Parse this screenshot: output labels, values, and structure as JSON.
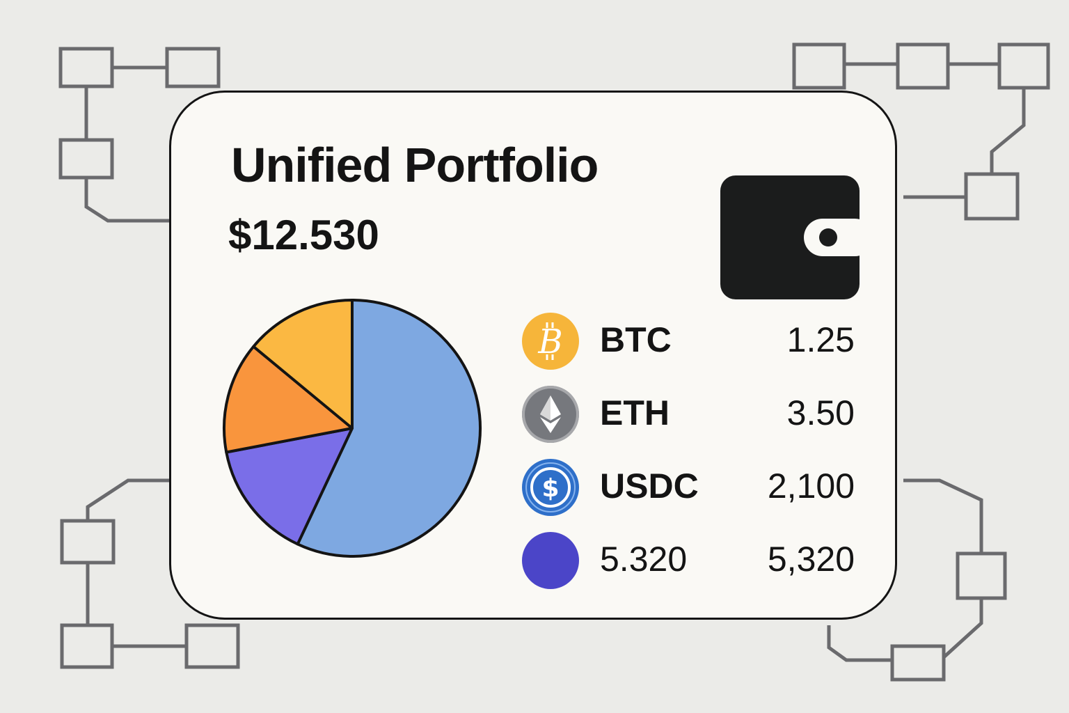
{
  "portfolio": {
    "title": "Unified Portfolio",
    "total_value": "$12.530"
  },
  "wallet_icon": "wallet-icon",
  "holdings": [
    {
      "symbol": "BTC",
      "amount": "1.25",
      "icon": "bitcoin-icon",
      "color": "#f6b53a"
    },
    {
      "symbol": "ETH",
      "amount": "3.50",
      "icon": "ethereum-icon",
      "color": "#76787d"
    },
    {
      "symbol": "USDC",
      "amount": "2,100",
      "icon": "usdc-icon",
      "color": "#2e6fc9"
    },
    {
      "symbol": "5.320",
      "amount": "5,320",
      "icon": "coin-icon",
      "color": "#4b45c8"
    }
  ],
  "chart_data": {
    "type": "pie",
    "title": "",
    "values": [
      57,
      15,
      14,
      14
    ],
    "colors": [
      "#7ea8e1",
      "#7a6ee8",
      "#f9953d",
      "#fbb842"
    ]
  },
  "colors": {
    "background": "#ebebe8",
    "card": "#faf9f5",
    "outline": "#141414",
    "network": "#6a6a6d"
  }
}
